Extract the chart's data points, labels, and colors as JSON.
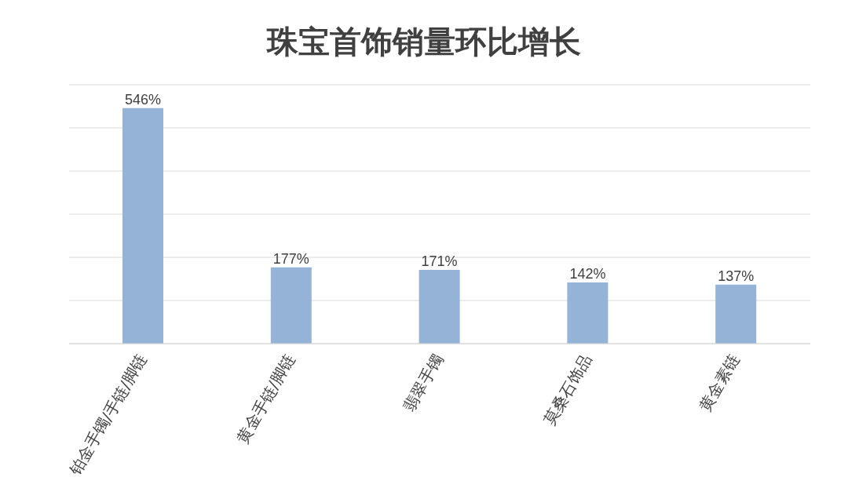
{
  "chart_data": {
    "type": "bar",
    "title": "珠宝首饰销量环比增长",
    "categories": [
      "铂金手镯/手链/脚链",
      "黄金手链/脚链",
      "翡翠手镯",
      "莫桑石饰品",
      "黄金素链"
    ],
    "values": [
      546,
      177,
      171,
      142,
      137
    ],
    "value_labels": [
      "546%",
      "177%",
      "171%",
      "142%",
      "137%"
    ],
    "color": "#95b3d7",
    "ylim": [
      0,
      600
    ],
    "grid": "y",
    "tick_labels": "x"
  }
}
